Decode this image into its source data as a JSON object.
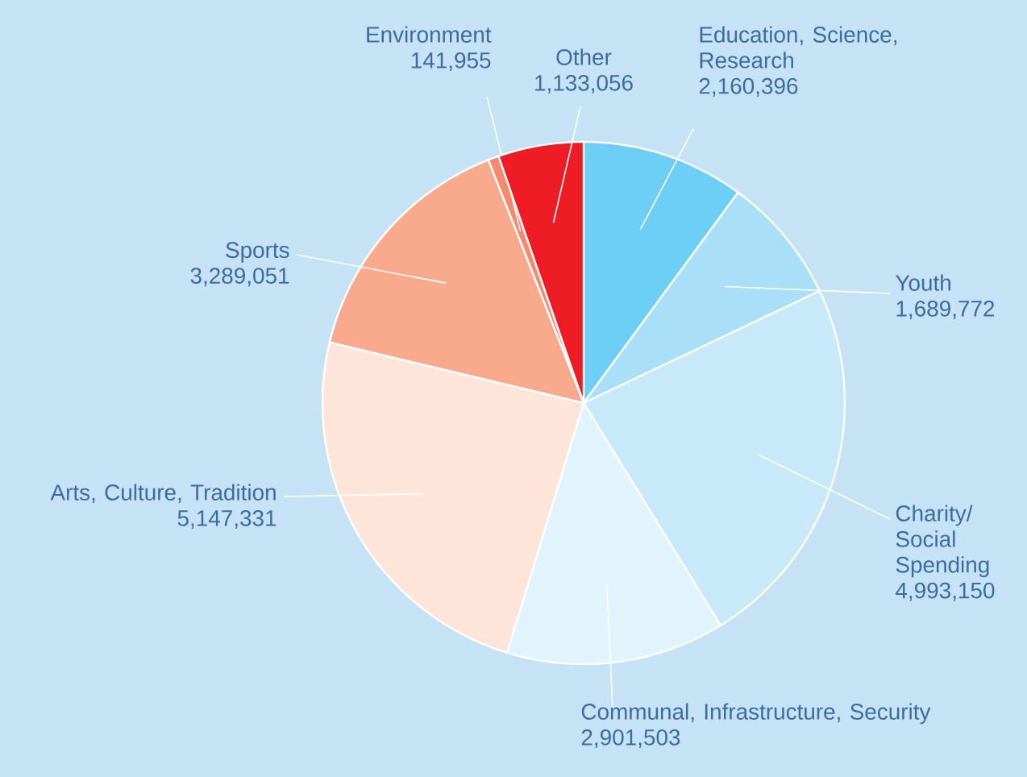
{
  "chart_data": {
    "type": "pie",
    "categories": [
      "Education, Science, Research",
      "Youth",
      "Charity/ Social Spending",
      "Communal, Infrastructure, Security",
      "Arts, Culture, Tradition",
      "Sports",
      "Environment",
      "Other"
    ],
    "values": [
      2160396,
      1689772,
      4993150,
      2901503,
      5147331,
      3289051,
      141955,
      1133056
    ],
    "value_labels": [
      "2,160,396",
      "1,689,772",
      "4,993,150",
      "2,901,503",
      "5,147,331",
      "3,289,051",
      "141,955",
      "1,133,056"
    ],
    "colors": [
      "#6dcff6",
      "#a9e0f8",
      "#c7e9f8",
      "#e1f3fb",
      "#fde5da",
      "#f9aa8c",
      "#f58a6e",
      "#ee1c25"
    ]
  }
}
